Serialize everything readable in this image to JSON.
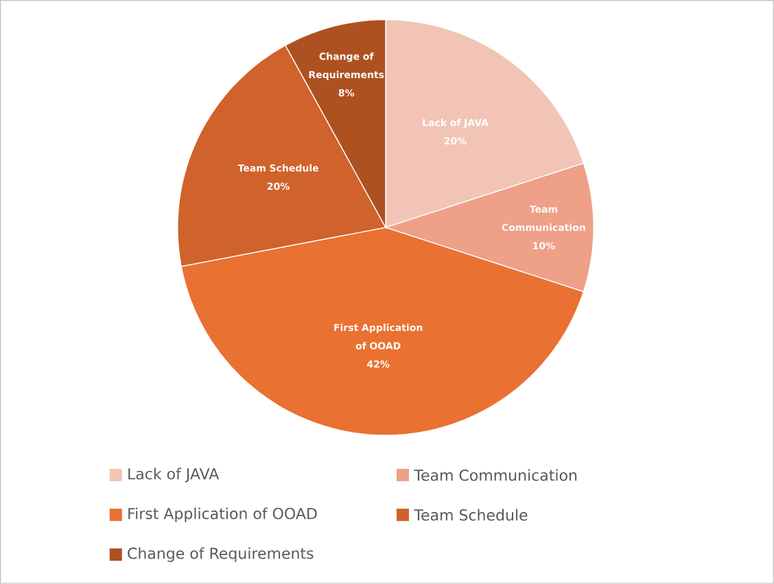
{
  "chart_data": {
    "type": "pie",
    "categories": [
      "Lack of JAVA",
      "Team Communication",
      "First Application of OOAD",
      "Team Schedule",
      "Change of Requirements"
    ],
    "values": [
      20,
      10,
      42,
      20,
      8
    ],
    "colors": [
      "#f2c4b6",
      "#eea088",
      "#e97132",
      "#d0622b",
      "#ad5121"
    ],
    "value_labels": [
      "20%",
      "10%",
      "42%",
      "20%",
      "8%"
    ],
    "legend": "bottom"
  }
}
